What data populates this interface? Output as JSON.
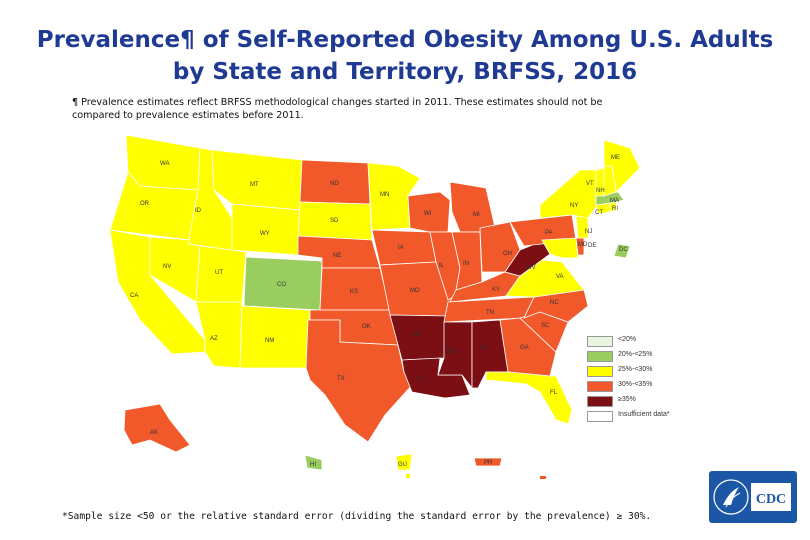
{
  "title": {
    "line1": "Prevalence¶ of Self-Reported Obesity Among U.S. Adults",
    "line2": "by State and Territory, BRFSS, 2016"
  },
  "note": {
    "line1": "¶ Prevalence estimates reflect BRFSS methodological changes started in 2011. These estimates should not be",
    "line2": "compared to prevalence estimates before 2011."
  },
  "colors": {
    "lt20": "#e8f4e0",
    "c20_25": "#9acd60",
    "c25_30": "#ffff00",
    "c30_35": "#f1592a",
    "gte35": "#7b0f13",
    "insufficient": "#ffffff"
  },
  "legend": {
    "items": [
      {
        "label": "<20%",
        "color_key": "lt20"
      },
      {
        "label": "20%-<25%",
        "color_key": "c20_25"
      },
      {
        "label": "25%-<30%",
        "color_key": "c25_30"
      },
      {
        "label": "30%-<35%",
        "color_key": "c30_35"
      },
      {
        "label": "≥35%",
        "color_key": "gte35"
      },
      {
        "label": "Insufficient data*",
        "color_key": "insufficient"
      }
    ]
  },
  "states": {
    "WA": {
      "label": "WA",
      "category": "25-30"
    },
    "OR": {
      "label": "OR",
      "category": "25-30"
    },
    "CA": {
      "label": "CA",
      "category": "25-30"
    },
    "ID": {
      "label": "ID",
      "category": "25-30"
    },
    "NV": {
      "label": "NV",
      "category": "25-30"
    },
    "MT": {
      "label": "MT",
      "category": "25-30"
    },
    "WY": {
      "label": "WY",
      "category": "25-30"
    },
    "UT": {
      "label": "UT",
      "category": "25-30"
    },
    "AZ": {
      "label": "AZ",
      "category": "25-30"
    },
    "CO": {
      "label": "CO",
      "category": "20-25"
    },
    "NM": {
      "label": "NM",
      "category": "25-30"
    },
    "ND": {
      "label": "ND",
      "category": "30-35"
    },
    "SD": {
      "label": "SD",
      "category": "25-30"
    },
    "NE": {
      "label": "NE",
      "category": "30-35"
    },
    "KS": {
      "label": "KS",
      "category": "30-35"
    },
    "OK": {
      "label": "OK",
      "category": "30-35"
    },
    "TX": {
      "label": "TX",
      "category": "30-35"
    },
    "MN": {
      "label": "MN",
      "category": "25-30"
    },
    "IA": {
      "label": "IA",
      "category": "30-35"
    },
    "MO": {
      "label": "MO",
      "category": "30-35"
    },
    "AR": {
      "label": "AR",
      "category": "35+"
    },
    "LA": {
      "label": "LA",
      "category": "35+"
    },
    "WI": {
      "label": "WI",
      "category": "30-35"
    },
    "IL": {
      "label": "IL",
      "category": "30-35"
    },
    "MI": {
      "label": "MI",
      "category": "30-35"
    },
    "IN": {
      "label": "IN",
      "category": "30-35"
    },
    "OH": {
      "label": "OH",
      "category": "30-35"
    },
    "KY": {
      "label": "KY",
      "category": "30-35"
    },
    "TN": {
      "label": "TN",
      "category": "30-35"
    },
    "MS": {
      "label": "MS",
      "category": "35+"
    },
    "AL": {
      "label": "AL",
      "category": "35+"
    },
    "GA": {
      "label": "GA",
      "category": "30-35"
    },
    "FL": {
      "label": "FL",
      "category": "25-30"
    },
    "SC": {
      "label": "SC",
      "category": "30-35"
    },
    "NC": {
      "label": "NC",
      "category": "30-35"
    },
    "VA": {
      "label": "VA",
      "category": "25-30"
    },
    "WV": {
      "label": "WV",
      "category": "35+"
    },
    "PA": {
      "label": "PA",
      "category": "30-35"
    },
    "NY": {
      "label": "NY",
      "category": "25-30"
    },
    "NJ": {
      "label": "NJ",
      "category": "25-30"
    },
    "DE": {
      "label": "DE",
      "category": "30-35"
    },
    "MD": {
      "label": "MD",
      "category": "25-30"
    },
    "DC": {
      "label": "DC",
      "category": "20-25"
    },
    "VT": {
      "label": "VT",
      "category": "25-30"
    },
    "NH": {
      "label": "NH",
      "category": "25-30"
    },
    "ME": {
      "label": "ME",
      "category": "25-30"
    },
    "MA": {
      "label": "MA",
      "category": "20-25"
    },
    "CT": {
      "label": "CT",
      "category": "25-30"
    },
    "RI": {
      "label": "RI",
      "category": "25-30"
    },
    "AK": {
      "label": "AK",
      "category": "30-35"
    },
    "HI": {
      "label": "HI",
      "category": "20-25"
    },
    "GU": {
      "label": "GU",
      "category": "25-30"
    },
    "PR": {
      "label": "PR",
      "category": "30-35"
    }
  },
  "footnote": "*Sample size <50 or the relative standard error (dividing the standard error by the prevalence) ≥ 30%.",
  "logo": {
    "text": "CDC",
    "icon": "hhs-eagle-icon"
  }
}
